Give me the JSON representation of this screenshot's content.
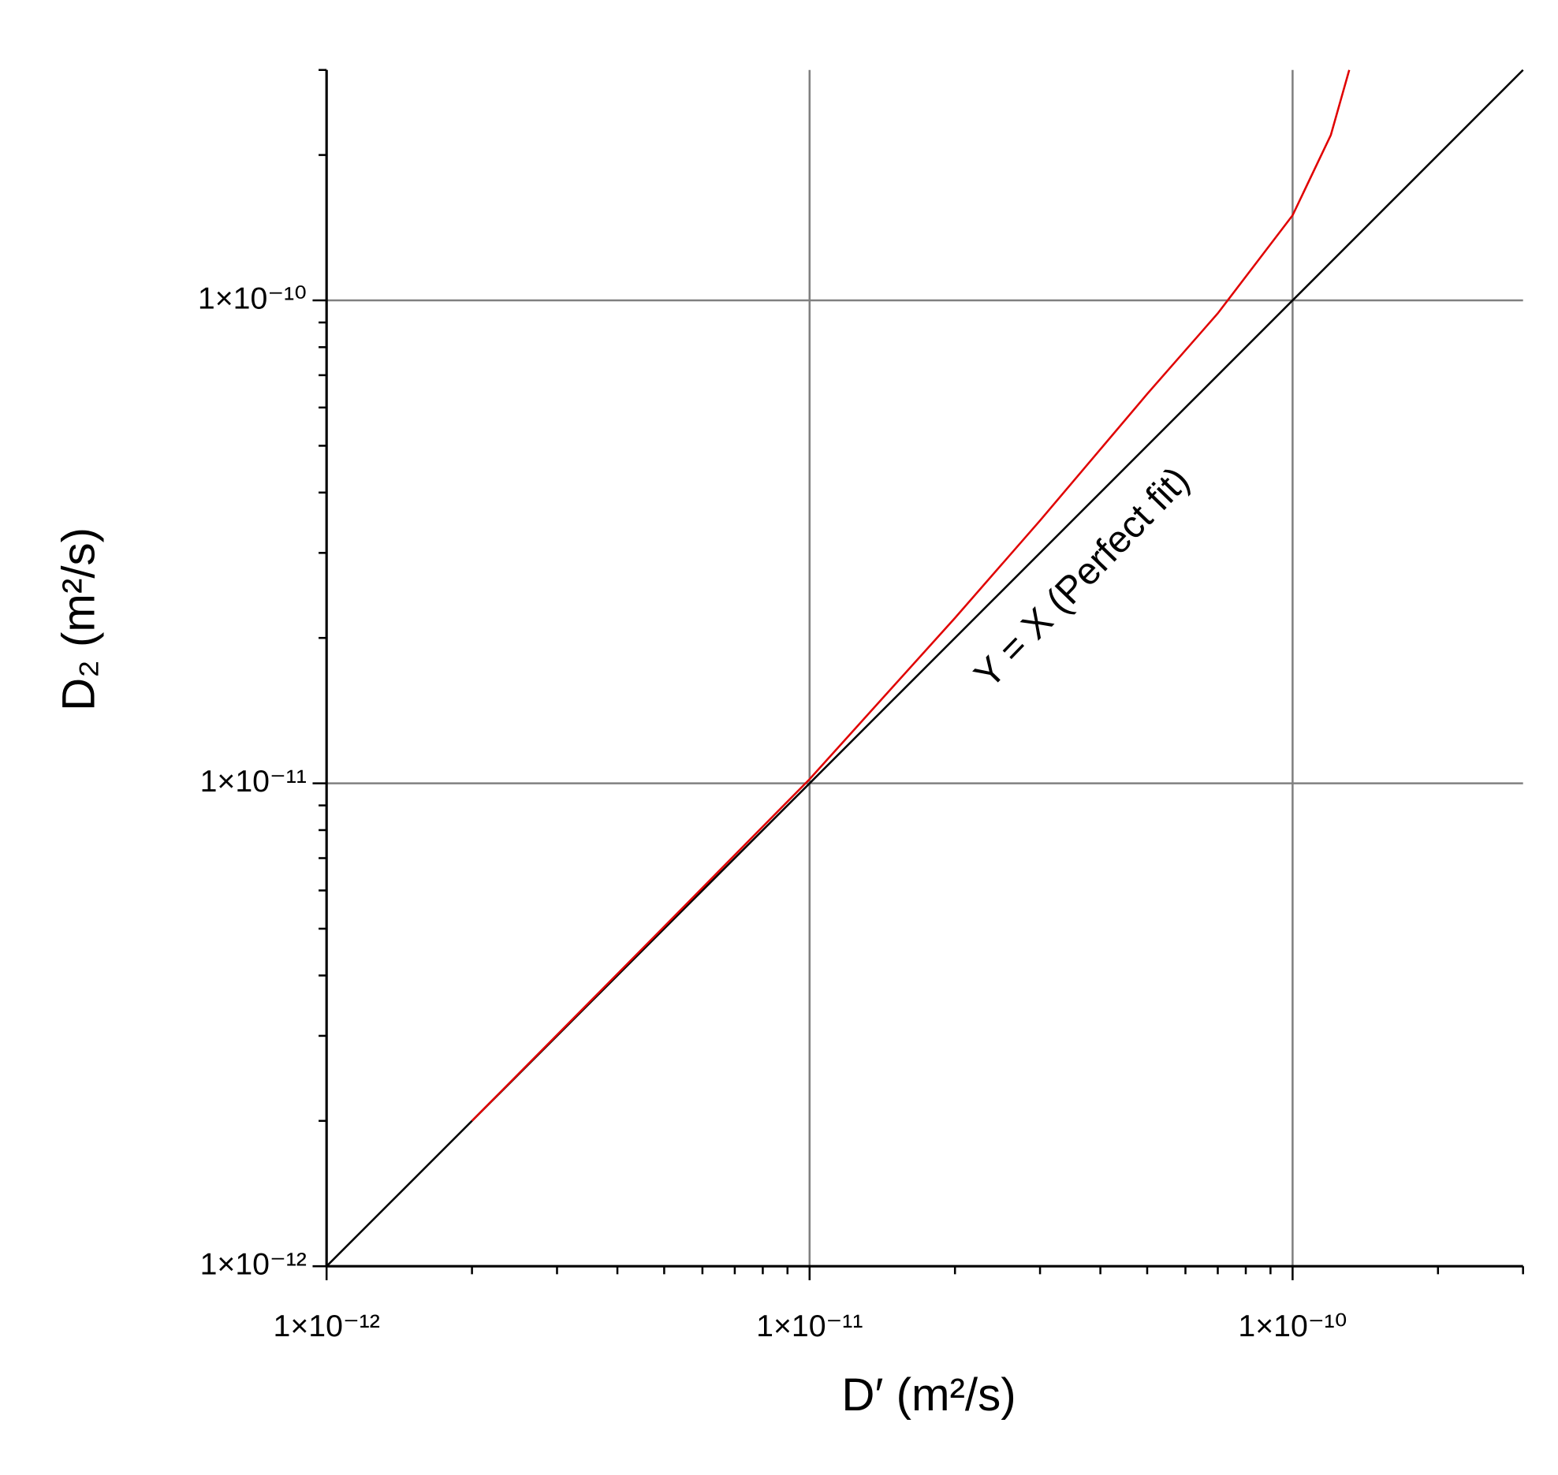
{
  "chart_data": {
    "type": "line",
    "log_x": true,
    "log_y": true,
    "grid": true,
    "x_label": "D′ (m²/s)",
    "y_label": "D₂ (m²/s)",
    "annotation": "Y = X (Perfect fit)",
    "xlim": [
      1e-12,
      3e-10
    ],
    "ylim": [
      1e-12,
      3e-10
    ],
    "xticks": [
      {
        "value": 1e-12,
        "label": "1×10⁻¹²"
      },
      {
        "value": 1e-11,
        "label": "1×10⁻¹¹"
      },
      {
        "value": 1e-10,
        "label": "1×10⁻¹⁰"
      }
    ],
    "yticks": [
      {
        "value": 1e-12,
        "label": "1×10⁻¹²"
      },
      {
        "value": 1e-11,
        "label": "1×10⁻¹¹"
      },
      {
        "value": 1e-10,
        "label": "1×10⁻¹⁰"
      }
    ],
    "xminorticks": [
      2e-12,
      3e-12,
      4e-12,
      5e-12,
      6e-12,
      7e-12,
      8e-12,
      9e-12,
      2e-11,
      3e-11,
      4e-11,
      5e-11,
      6e-11,
      7e-11,
      8e-11,
      9e-11,
      2e-10,
      3e-10
    ],
    "yminorticks": [
      2e-12,
      3e-12,
      4e-12,
      5e-12,
      6e-12,
      7e-12,
      8e-12,
      9e-12,
      2e-11,
      3e-11,
      4e-11,
      5e-11,
      6e-11,
      7e-11,
      8e-11,
      9e-11,
      2e-10,
      3e-10
    ],
    "series": [
      {
        "color": "#e00000",
        "x": [
          2e-12,
          5e-12,
          1e-11,
          2e-11,
          3e-11,
          5e-11,
          7e-11,
          1e-10,
          1.2e-10,
          1.31e-10
        ],
        "values": [
          2e-12,
          5.05e-12,
          1.02e-11,
          2.2e-11,
          3.5e-11,
          6.4e-11,
          9.4e-11,
          1.5e-10,
          2.2e-10,
          3e-10
        ]
      },
      {
        "color": "#000000",
        "x": [
          1e-12,
          3e-10
        ],
        "values": [
          1e-12,
          3e-10
        ]
      }
    ]
  }
}
